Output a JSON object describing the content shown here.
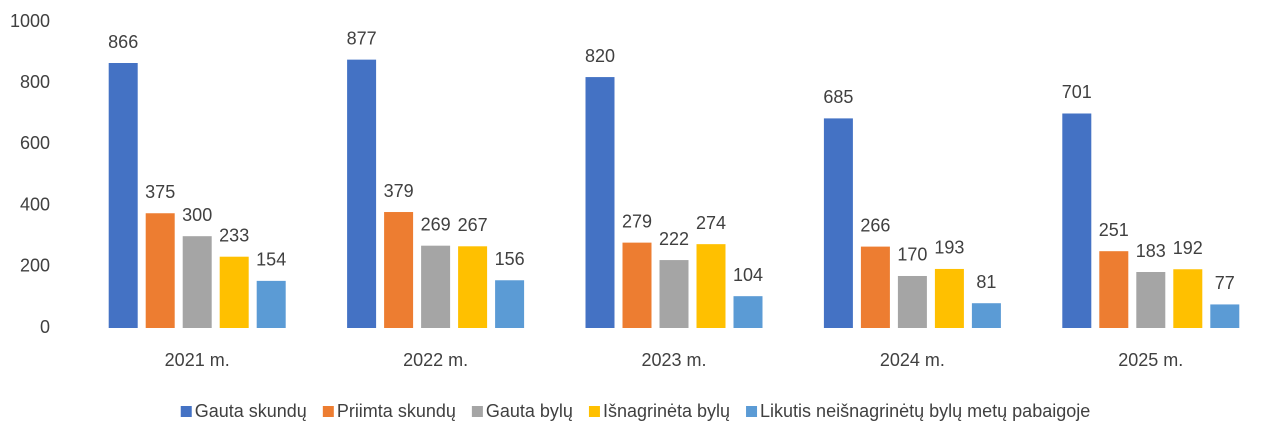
{
  "chart_data": {
    "type": "bar",
    "categories": [
      "2021 m.",
      "2022 m.",
      "2023 m.",
      "2024 m.",
      "2025 m."
    ],
    "series": [
      {
        "name": "Gauta skundų",
        "color": "#4472c4",
        "values": [
          866,
          877,
          820,
          685,
          701
        ]
      },
      {
        "name": "Priimta skundų",
        "color": "#ed7d31",
        "values": [
          375,
          379,
          279,
          266,
          251
        ]
      },
      {
        "name": "Gauta bylų",
        "color": "#a5a5a5",
        "values": [
          300,
          269,
          222,
          170,
          183
        ]
      },
      {
        "name": "Išnagrinėta bylų",
        "color": "#ffc000",
        "values": [
          233,
          267,
          274,
          193,
          192
        ]
      },
      {
        "name": "Likutis neišnagrinėtų bylų metų pabaigoje",
        "color": "#5b9bd5",
        "values": [
          154,
          156,
          104,
          81,
          77
        ]
      }
    ],
    "ylim": [
      0,
      1000
    ],
    "yticks": [
      0,
      200,
      400,
      600,
      800,
      1000
    ],
    "grid": false,
    "legend": "bottom"
  }
}
